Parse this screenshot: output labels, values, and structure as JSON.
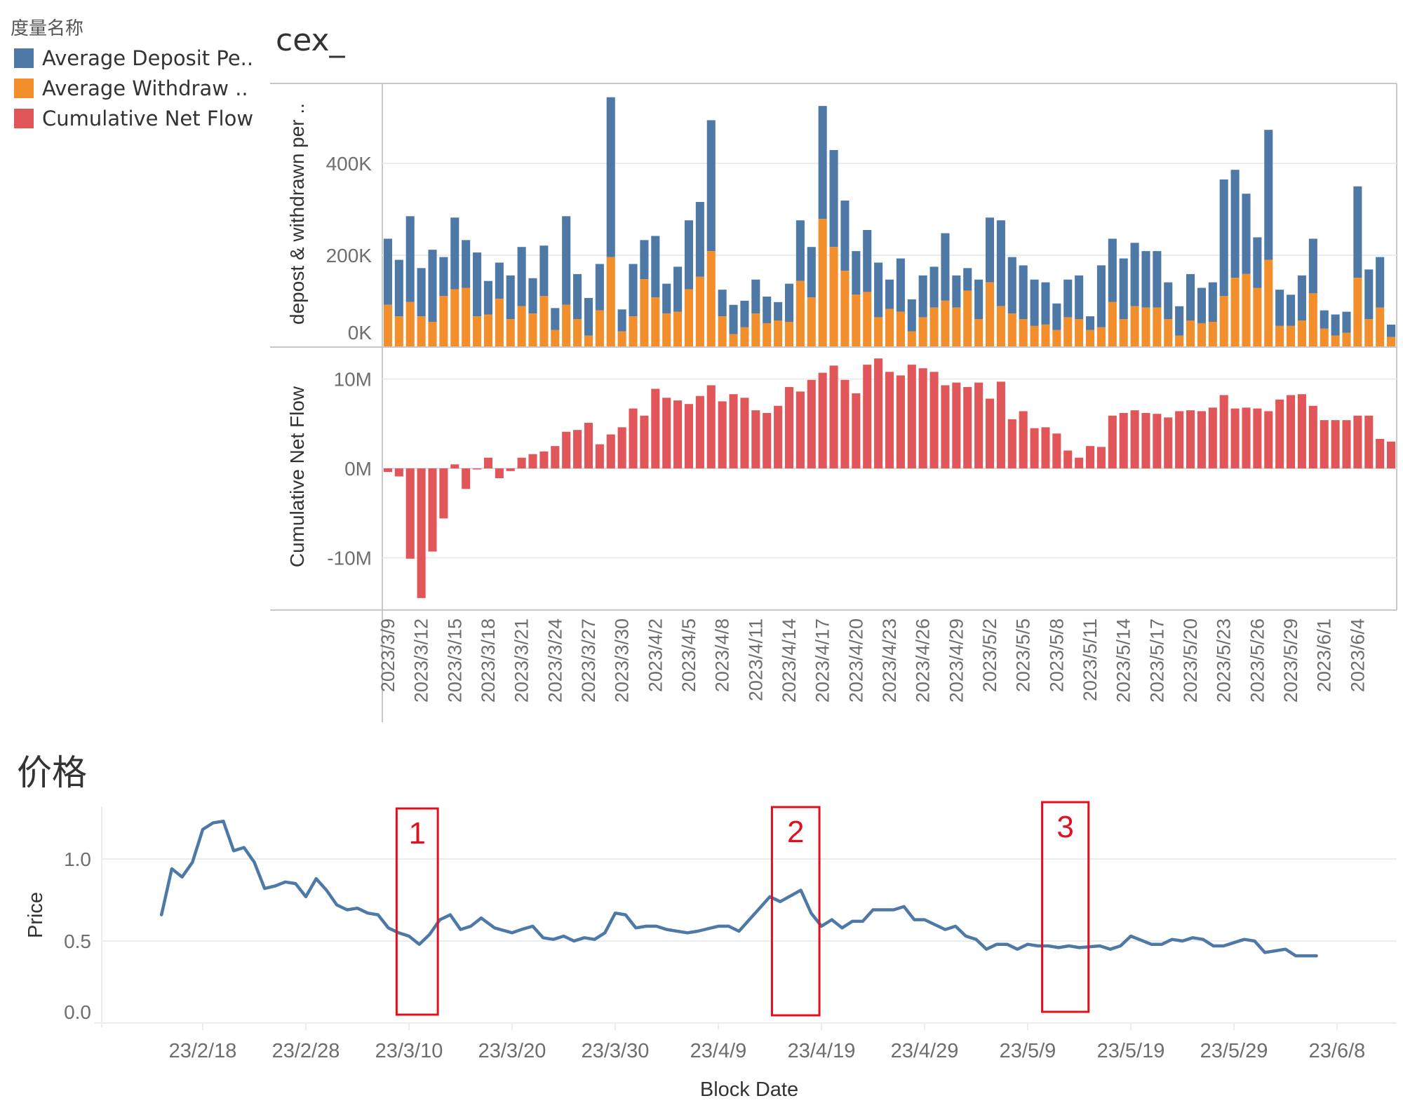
{
  "legend": {
    "title": "度量名称",
    "items": [
      {
        "label": "Average Deposit Pe..",
        "color": "#4e79a7"
      },
      {
        "label": "Average Withdraw ..",
        "color": "#f28e2b"
      },
      {
        "label": "Cumulative Net Flow",
        "color": "#e15759"
      }
    ]
  },
  "cex_title": "cex_",
  "price_title": "价格",
  "chart_data": [
    {
      "type": "bar",
      "stacked": true,
      "title": "cex_",
      "ylabel": "depost & withdrawn per ..",
      "yticks": [
        "0K",
        "200K",
        "400K"
      ],
      "ytick_values": [
        0,
        200,
        400
      ],
      "ylim": [
        0,
        560
      ],
      "units": "K",
      "grid": true,
      "start_date": "2023/3/9",
      "label_every": 3,
      "categories_count": 91,
      "xtick_labels": [
        "2023/3/9",
        "2023/3/12",
        "2023/3/15",
        "2023/3/18",
        "2023/3/21",
        "2023/3/24",
        "2023/3/27",
        "2023/3/30",
        "2023/4/2",
        "2023/4/5",
        "2023/4/8",
        "2023/4/11",
        "2023/4/14",
        "2023/4/17",
        "2023/4/20",
        "2023/4/23",
        "2023/4/26",
        "2023/4/29",
        "2023/5/2",
        "2023/5/5",
        "2023/5/8",
        "2023/5/11",
        "2023/5/14",
        "2023/5/17",
        "2023/5/20",
        "2023/5/23",
        "2023/5/26",
        "2023/5/29",
        "2023/6/1",
        "2023/6/4"
      ],
      "series": [
        {
          "name": "Average Withdraw ..",
          "color": "#f28e2b",
          "values": [
            92,
            67,
            98,
            67,
            55,
            111,
            126,
            129,
            67,
            71,
            105,
            61,
            89,
            73,
            111,
            37,
            92,
            61,
            25,
            80,
            196,
            34,
            67,
            148,
            108,
            73,
            77,
            126,
            153,
            209,
            67,
            28,
            43,
            73,
            52,
            58,
            55,
            144,
            108,
            279,
            218,
            166,
            114,
            120,
            65,
            83,
            77,
            34,
            65,
            86,
            101,
            86,
            123,
            61,
            141,
            89,
            73,
            61,
            46,
            49,
            37,
            65,
            61,
            37,
            43,
            98,
            61,
            89,
            86,
            86,
            61,
            25,
            58,
            52,
            55,
            111,
            151,
            159,
            129,
            190,
            46,
            46,
            58,
            117,
            40,
            25,
            31,
            151,
            61,
            86,
            22
          ]
        },
        {
          "name": "Average Deposit Pe..",
          "color": "#4e79a7",
          "totals": [
            236,
            190,
            285,
            172,
            212,
            196,
            282,
            233,
            206,
            144,
            184,
            156,
            218,
            150,
            221,
            85,
            285,
            159,
            107,
            181,
            544,
            82,
            181,
            233,
            242,
            138,
            175,
            276,
            316,
            494,
            125,
            92,
            101,
            147,
            110,
            98,
            138,
            276,
            218,
            525,
            429,
            319,
            209,
            255,
            184,
            147,
            193,
            104,
            156,
            175,
            248,
            156,
            172,
            147,
            282,
            276,
            196,
            178,
            147,
            141,
            95,
            147,
            156,
            67,
            178,
            236,
            193,
            227,
            209,
            209,
            141,
            89,
            159,
            129,
            141,
            365,
            386,
            334,
            239,
            473,
            125,
            114,
            156,
            236,
            80,
            71,
            77,
            350,
            169,
            196,
            49
          ]
        }
      ]
    },
    {
      "type": "bar",
      "title": "",
      "ylabel": "Cumulative Net Flow",
      "yticks": [
        "-10M",
        "0M",
        "10M"
      ],
      "ytick_values": [
        -10,
        0,
        10
      ],
      "ylim": [
        -15.9,
        13.5
      ],
      "units": "M",
      "grid": true,
      "series": [
        {
          "name": "Cumulative Net Flow",
          "color": "#e15759",
          "values": [
            -0.4,
            -0.9,
            -10.1,
            -14.5,
            -9.3,
            -5.6,
            0.45,
            -2.3,
            -0.1,
            1.2,
            -1.1,
            -0.3,
            1.2,
            1.6,
            1.9,
            2.5,
            4.1,
            4.3,
            5.1,
            2.7,
            3.8,
            4.6,
            6.7,
            5.9,
            8.9,
            7.9,
            7.6,
            7.2,
            8.1,
            9.3,
            7.5,
            8.3,
            7.9,
            6.5,
            6.2,
            7.0,
            9.1,
            8.6,
            9.9,
            10.7,
            11.5,
            9.9,
            8.4,
            11.6,
            12.3,
            10.8,
            10.4,
            11.6,
            11.2,
            10.8,
            9.3,
            9.6,
            9.1,
            9.6,
            7.8,
            9.7,
            5.5,
            6.4,
            4.5,
            4.6,
            3.9,
            2.0,
            1.2,
            2.5,
            2.4,
            5.9,
            6.2,
            6.5,
            6.2,
            6.1,
            5.7,
            6.4,
            6.5,
            6.4,
            6.8,
            8.2,
            6.7,
            6.8,
            6.7,
            6.4,
            7.7,
            8.2,
            8.3,
            7.0,
            5.4,
            5.4,
            5.4,
            5.9,
            5.9,
            3.3,
            3.0
          ]
        }
      ]
    },
    {
      "type": "line",
      "title": "价格",
      "xlabel": "Block Date",
      "ylabel": "Price",
      "yticks": [
        "0.0",
        "0.5",
        "1.0"
      ],
      "ytick_values": [
        0,
        0.5,
        1.0
      ],
      "ylim": [
        0,
        1.32
      ],
      "grid": true,
      "xtick_labels": [
        "23/2/18",
        "23/2/28",
        "23/3/10",
        "23/3/20",
        "23/3/30",
        "23/4/9",
        "23/4/19",
        "23/4/29",
        "23/5/9",
        "23/5/19",
        "23/5/29",
        "23/6/8"
      ],
      "xtick_day_offsets": [
        0,
        10,
        20,
        30,
        40,
        50,
        60,
        70,
        80,
        90,
        100,
        110
      ],
      "series": [
        {
          "name": "Price",
          "color": "#4e79a7",
          "x_day_offsets": [
            -4,
            -3,
            -2,
            -1,
            0,
            1,
            2,
            3,
            4,
            5,
            6,
            7,
            8,
            9,
            10,
            11,
            12,
            13,
            14,
            15,
            16,
            17,
            18,
            19,
            20,
            21,
            22,
            23,
            24,
            25,
            26,
            27,
            28.3,
            30,
            30.9,
            32,
            33,
            34,
            35,
            36,
            37,
            38,
            39,
            40,
            41,
            42,
            43,
            44,
            45,
            47,
            48,
            50,
            51,
            52,
            53,
            54,
            55,
            56,
            58,
            59,
            60,
            61,
            62,
            63,
            64,
            65,
            67,
            68,
            69,
            70,
            71,
            72,
            73,
            74,
            75,
            76,
            77,
            78,
            79,
            80,
            81,
            82,
            83,
            84,
            85,
            87,
            88,
            89,
            90,
            92,
            93,
            94,
            95,
            96,
            97,
            98,
            99,
            100,
            101,
            102,
            103,
            105,
            106,
            107,
            108,
            109,
            110
          ],
          "values": [
            0.66,
            0.94,
            0.89,
            0.98,
            1.18,
            1.22,
            1.23,
            1.05,
            1.07,
            0.98,
            0.82,
            0.835,
            0.86,
            0.85,
            0.77,
            0.88,
            0.81,
            0.72,
            0.69,
            0.7,
            0.67,
            0.66,
            0.58,
            0.55,
            0.53,
            0.48,
            0.54,
            0.63,
            0.66,
            0.57,
            0.59,
            0.64,
            0.58,
            0.55,
            0.57,
            0.59,
            0.52,
            0.51,
            0.53,
            0.5,
            0.52,
            0.51,
            0.55,
            0.67,
            0.66,
            0.58,
            0.59,
            0.59,
            0.57,
            0.55,
            0.56,
            0.59,
            0.59,
            0.56,
            0.63,
            0.7,
            0.77,
            0.74,
            0.81,
            0.67,
            0.59,
            0.63,
            0.58,
            0.62,
            0.62,
            0.69,
            0.69,
            0.71,
            0.63,
            0.63,
            0.6,
            0.57,
            0.59,
            0.53,
            0.51,
            0.45,
            0.48,
            0.48,
            0.45,
            0.48,
            0.47,
            0.47,
            0.46,
            0.47,
            0.46,
            0.47,
            0.45,
            0.47,
            0.53,
            0.48,
            0.48,
            0.51,
            0.5,
            0.52,
            0.51,
            0.47,
            0.47,
            0.49,
            0.51,
            0.5,
            0.43,
            0.45,
            0.41,
            0.41,
            0.41
          ]
        }
      ],
      "annotations": [
        {
          "label": "1",
          "day_range": [
            18.8,
            22.8
          ]
        },
        {
          "label": "2",
          "day_range": [
            55.2,
            59.8
          ]
        },
        {
          "label": "3",
          "day_range": [
            81.4,
            85.9
          ]
        }
      ]
    }
  ]
}
